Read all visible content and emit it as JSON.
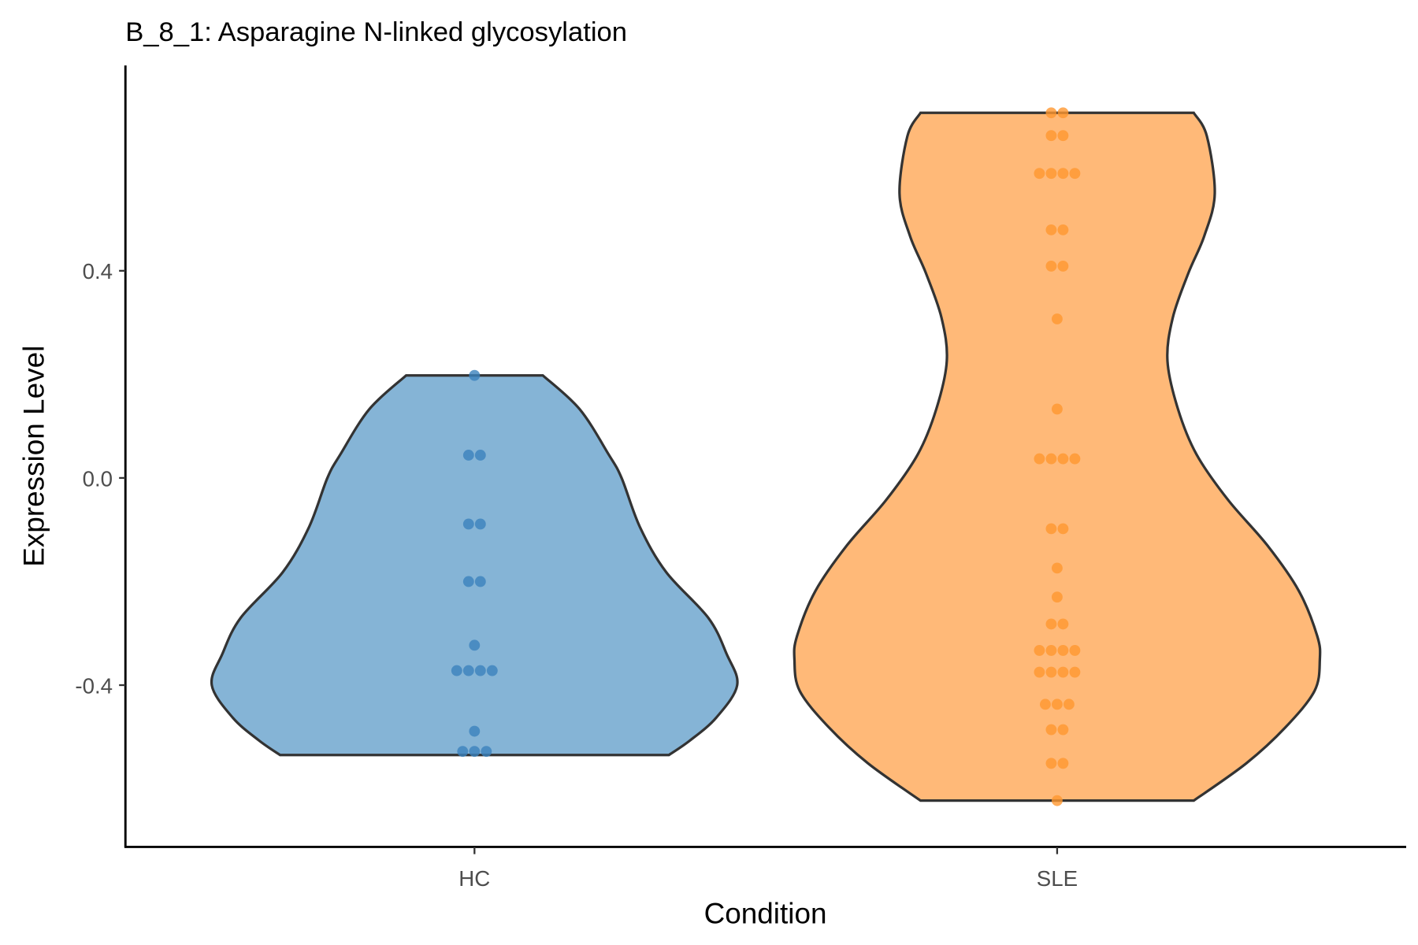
{
  "chart_data": {
    "type": "violin",
    "title": "B_8_1: Asparagine N-linked glycosylation",
    "xlabel": "Condition",
    "ylabel": "Expression Level",
    "ylim": [
      -0.71,
      0.8
    ],
    "yticks": [
      {
        "value": 0.4,
        "label": "0.4"
      },
      {
        "value": 0.0,
        "label": "0.0"
      },
      {
        "value": -0.4,
        "label": "-0.4"
      }
    ],
    "categories": [
      "HC",
      "SLE"
    ],
    "grid": false,
    "series": [
      {
        "name": "HC",
        "fill": "#85b4d6",
        "point_color": "#3b82bd",
        "density_profile": [
          [
            0.198,
            0.26
          ],
          [
            0.133,
            0.4
          ],
          [
            0.046,
            0.51
          ],
          [
            0.0,
            0.56
          ],
          [
            -0.095,
            0.63
          ],
          [
            -0.182,
            0.73
          ],
          [
            -0.27,
            0.89
          ],
          [
            -0.34,
            0.96
          ],
          [
            -0.4,
            1.0
          ],
          [
            -0.463,
            0.92
          ],
          [
            -0.507,
            0.82
          ],
          [
            -0.535,
            0.74
          ]
        ],
        "points": [
          {
            "y": 0.198,
            "n": 1
          },
          {
            "y": 0.044,
            "n": 2
          },
          {
            "y": -0.089,
            "n": 2
          },
          {
            "y": -0.2,
            "n": 2
          },
          {
            "y": -0.323,
            "n": 1
          },
          {
            "y": -0.372,
            "n": 4
          },
          {
            "y": -0.489,
            "n": 1
          },
          {
            "y": -0.528,
            "n": 3
          }
        ]
      },
      {
        "name": "SLE",
        "fill": "#ffb978",
        "point_color": "#ff972f",
        "density_profile": [
          [
            0.705,
            0.52
          ],
          [
            0.66,
            0.57
          ],
          [
            0.549,
            0.6
          ],
          [
            0.467,
            0.56
          ],
          [
            0.396,
            0.5
          ],
          [
            0.309,
            0.44
          ],
          [
            0.226,
            0.42
          ],
          [
            0.133,
            0.46
          ],
          [
            0.046,
            0.53
          ],
          [
            -0.042,
            0.65
          ],
          [
            -0.13,
            0.8
          ],
          [
            -0.218,
            0.92
          ],
          [
            -0.305,
            0.99
          ],
          [
            -0.351,
            1.0
          ],
          [
            -0.411,
            0.98
          ],
          [
            -0.481,
            0.87
          ],
          [
            -0.551,
            0.72
          ],
          [
            -0.623,
            0.52
          ]
        ],
        "points": [
          {
            "y": 0.705,
            "n": 2
          },
          {
            "y": 0.661,
            "n": 2
          },
          {
            "y": 0.588,
            "n": 4
          },
          {
            "y": 0.479,
            "n": 2
          },
          {
            "y": 0.409,
            "n": 2
          },
          {
            "y": 0.307,
            "n": 1
          },
          {
            "y": 0.133,
            "n": 1
          },
          {
            "y": 0.037,
            "n": 4
          },
          {
            "y": -0.098,
            "n": 2
          },
          {
            "y": -0.174,
            "n": 1
          },
          {
            "y": -0.23,
            "n": 1
          },
          {
            "y": -0.282,
            "n": 2
          },
          {
            "y": -0.333,
            "n": 4
          },
          {
            "y": -0.375,
            "n": 4
          },
          {
            "y": -0.437,
            "n": 3
          },
          {
            "y": -0.486,
            "n": 2
          },
          {
            "y": -0.551,
            "n": 2
          },
          {
            "y": -0.623,
            "n": 1
          }
        ]
      }
    ]
  }
}
